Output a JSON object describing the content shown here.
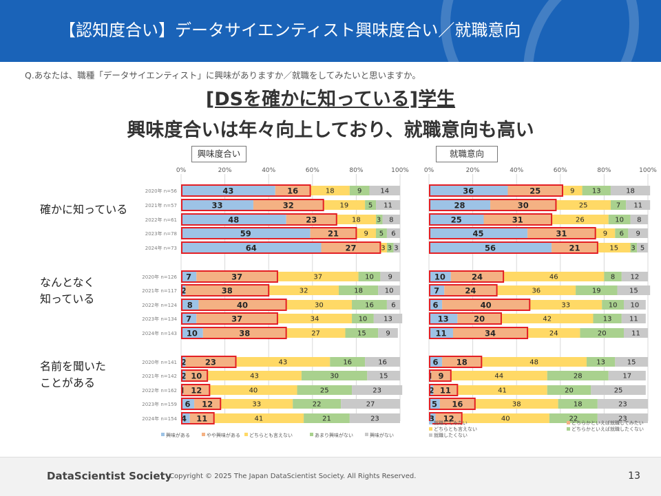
{
  "header": {
    "title": "【認知度合い】データサイエンティスト興味度合い／就職意向"
  },
  "question": "Q.あなたは、職種「データサイエンティスト」に興味がありますか／就職をしてみたいと思いますか。",
  "headline": {
    "line1": "[DSを確かに知っている]学生",
    "line2": "興味度合いは年々向上しており、就職意向も高い"
  },
  "groups": [
    "確かに知っている",
    "なんとなく\n知っている",
    "名前を聞いた\nことがある"
  ],
  "colors": {
    "c1": "#9dc3e6",
    "c2": "#f4b183",
    "c3": "#ffd966",
    "c4": "#a9d18e",
    "c5": "#c9c9c9",
    "highlight": "#e31e24",
    "header": "#1a63b8"
  },
  "chart_data": [
    {
      "type": "bar",
      "stacked": "horizontal-100%",
      "title": "興味度合い",
      "xlim": [
        0,
        100
      ],
      "ticks": [
        "0%",
        "20%",
        "40%",
        "60%",
        "80%",
        "100%"
      ],
      "categories": [
        "2020年 n=56",
        "2021年 n=57",
        "2022年 n=61",
        "2023年 n=78",
        "2024年 n=73",
        "2020年 n=126",
        "2021年 n=117",
        "2022年 n=124",
        "2023年 n=134",
        "2024年 n=143",
        "2020年 n=141",
        "2021年 n=142",
        "2022年 n=162",
        "2023年 n=159",
        "2024年 n=154"
      ],
      "series": [
        {
          "name": "興味がある",
          "values": [
            43,
            33,
            48,
            59,
            64,
            7,
            2,
            8,
            7,
            10,
            2,
            2,
            1,
            6,
            4
          ]
        },
        {
          "name": "やや興味がある",
          "values": [
            16,
            32,
            23,
            21,
            27,
            37,
            38,
            40,
            37,
            38,
            23,
            10,
            12,
            12,
            11
          ]
        },
        {
          "name": "どちらとも言えない",
          "values": [
            18,
            19,
            18,
            9,
            3,
            37,
            32,
            30,
            34,
            27,
            43,
            43,
            40,
            33,
            41
          ]
        },
        {
          "name": "あまり興味がない",
          "values": [
            9,
            5,
            3,
            5,
            3,
            10,
            18,
            16,
            10,
            15,
            16,
            30,
            25,
            22,
            21
          ]
        },
        {
          "name": "興味がない",
          "values": [
            14,
            11,
            8,
            6,
            3,
            9,
            10,
            6,
            13,
            9,
            16,
            15,
            23,
            27,
            23
          ]
        }
      ]
    },
    {
      "type": "bar",
      "stacked": "horizontal-100%",
      "title": "就職意向",
      "xlim": [
        0,
        100
      ],
      "ticks": [
        "0%",
        "20%",
        "40%",
        "60%",
        "80%",
        "100%"
      ],
      "categories": [
        "2020年 n=56",
        "2021年 n=57",
        "2022年 n=61",
        "2023年 n=78",
        "2024年 n=73",
        "2020年 n=126",
        "2021年 n=117",
        "2022年 n=124",
        "2023年 n=134",
        "2024年 n=143",
        "2020年 n=141",
        "2021年 n=142",
        "2022年 n=162",
        "2023年 n=159",
        "2024年 n=154"
      ],
      "series": [
        {
          "name": "就職してみたい",
          "values": [
            36,
            28,
            25,
            45,
            56,
            10,
            7,
            6,
            13,
            11,
            6,
            1,
            2,
            5,
            3
          ]
        },
        {
          "name": "どちらかといえば就職してみたい",
          "values": [
            25,
            30,
            31,
            31,
            21,
            24,
            24,
            40,
            20,
            34,
            18,
            9,
            11,
            16,
            12
          ]
        },
        {
          "name": "どちらとも言えない",
          "values": [
            9,
            25,
            26,
            9,
            15,
            46,
            36,
            33,
            42,
            24,
            48,
            44,
            41,
            38,
            40
          ]
        },
        {
          "name": "どちらかといえば就職したくない",
          "values": [
            13,
            7,
            10,
            6,
            3,
            8,
            19,
            10,
            13,
            20,
            13,
            28,
            20,
            18,
            22
          ]
        },
        {
          "name": "就職したくない",
          "values": [
            18,
            11,
            8,
            9,
            5,
            12,
            15,
            10,
            11,
            11,
            15,
            17,
            25,
            23,
            23
          ]
        }
      ]
    }
  ],
  "footer": {
    "logo": "DataScientist Society",
    "copyright": "Copyright © 2025  The Japan DataScientist Society. All Rights Reserved.",
    "page": "13"
  }
}
